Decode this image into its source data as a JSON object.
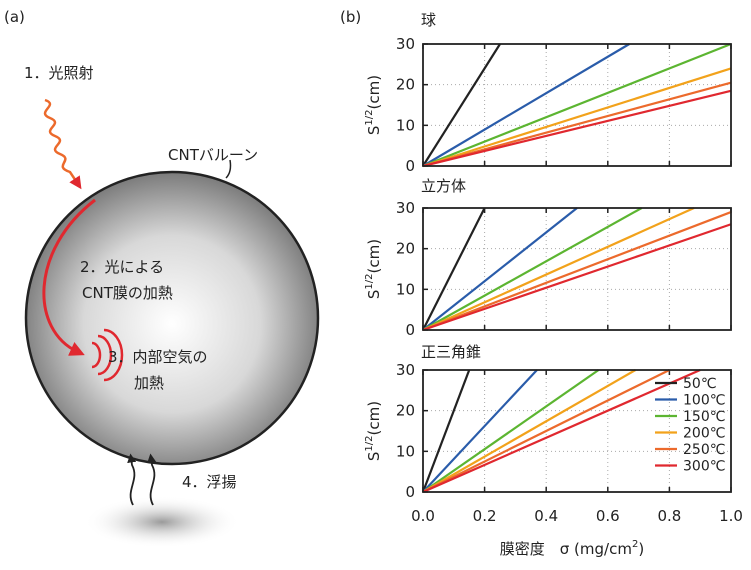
{
  "panel_labels": [
    "(a)",
    "(b)"
  ],
  "diagram": {
    "step1": "1．光照射",
    "balloon": "CNTバルーン",
    "step2": [
      "2．光による",
      "CNT膜の加熱"
    ],
    "step3": [
      "3．内部空気の",
      "加熱"
    ],
    "step4": "4．浮揚"
  },
  "chart_data": [
    {
      "type": "line",
      "title": "球",
      "ylabel": {
        "base": "S",
        "sup": "1/2",
        "unit": "(cm)"
      },
      "xlim": [
        0,
        1
      ],
      "ylim": [
        0,
        30
      ],
      "xticks": [
        0,
        0.2,
        0.4,
        0.6,
        0.8,
        1
      ],
      "yticks": [
        0,
        10,
        20,
        30
      ],
      "grid": true,
      "series": [
        {
          "color": "#222222",
          "x": [
            0,
            0.25
          ],
          "values": [
            0,
            30
          ]
        },
        {
          "color": "#2a5caa",
          "x": [
            0,
            0.67
          ],
          "values": [
            0,
            30
          ]
        },
        {
          "color": "#5cb531",
          "x": [
            0,
            1
          ],
          "values": [
            0,
            30
          ]
        },
        {
          "color": "#f2a21b",
          "x": [
            0,
            1
          ],
          "values": [
            0,
            24
          ]
        },
        {
          "color": "#ec6a2c",
          "x": [
            0,
            1
          ],
          "values": [
            0,
            20.5
          ]
        },
        {
          "color": "#e0282f",
          "x": [
            0,
            1
          ],
          "values": [
            0,
            18.5
          ]
        }
      ]
    },
    {
      "type": "line",
      "title": "立方体",
      "ylabel": {
        "base": "S",
        "sup": "1/2",
        "unit": "(cm)"
      },
      "xlim": [
        0,
        1
      ],
      "ylim": [
        0,
        30
      ],
      "xticks": [
        0,
        0.2,
        0.4,
        0.6,
        0.8,
        1
      ],
      "yticks": [
        0,
        10,
        20,
        30
      ],
      "grid": true,
      "series": [
        {
          "color": "#222222",
          "x": [
            0,
            0.2
          ],
          "values": [
            0,
            30
          ]
        },
        {
          "color": "#2a5caa",
          "x": [
            0,
            0.5
          ],
          "values": [
            0,
            30
          ]
        },
        {
          "color": "#5cb531",
          "x": [
            0,
            0.71
          ],
          "values": [
            0,
            30
          ]
        },
        {
          "color": "#f2a21b",
          "x": [
            0,
            0.88
          ],
          "values": [
            0,
            30
          ]
        },
        {
          "color": "#ec6a2c",
          "x": [
            0,
            1
          ],
          "values": [
            0,
            29
          ]
        },
        {
          "color": "#e0282f",
          "x": [
            0,
            1
          ],
          "values": [
            0,
            26
          ]
        }
      ]
    },
    {
      "type": "line",
      "title": "正三角錐",
      "ylabel": {
        "base": "S",
        "sup": "1/2",
        "unit": "(cm)"
      },
      "xlabel": {
        "text": "膜密度　σ (mg/cm",
        "sup": "2",
        "end": ")"
      },
      "xlim": [
        0,
        1
      ],
      "ylim": [
        0,
        30
      ],
      "xticks": [
        {
          "value": 0,
          "label": "0.0"
        },
        0.2,
        0.4,
        0.6,
        0.8,
        {
          "value": 1,
          "label": "1.0"
        }
      ],
      "yticks": [
        0,
        10,
        20,
        30
      ],
      "grid": true,
      "legend": "lower right",
      "series": [
        {
          "name": "50℃",
          "color": "#222222",
          "x": [
            0,
            0.15
          ],
          "values": [
            0,
            30
          ]
        },
        {
          "name": "100℃",
          "color": "#2a5caa",
          "x": [
            0,
            0.37
          ],
          "values": [
            0,
            30
          ]
        },
        {
          "name": "150℃",
          "color": "#5cb531",
          "x": [
            0,
            0.57
          ],
          "values": [
            0,
            30
          ]
        },
        {
          "name": "200℃",
          "color": "#f2a21b",
          "x": [
            0,
            0.69
          ],
          "values": [
            0,
            30
          ]
        },
        {
          "name": "250℃",
          "color": "#ec6a2c",
          "x": [
            0,
            0.8
          ],
          "values": [
            0,
            30
          ]
        },
        {
          "name": "300℃",
          "color": "#e0282f",
          "x": [
            0,
            0.9
          ],
          "values": [
            0,
            30
          ]
        }
      ]
    }
  ]
}
